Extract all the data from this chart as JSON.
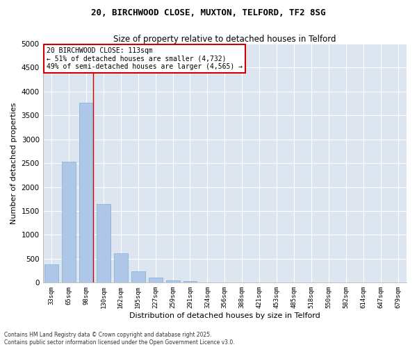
{
  "title_line1": "20, BIRCHWOOD CLOSE, MUXTON, TELFORD, TF2 8SG",
  "title_line2": "Size of property relative to detached houses in Telford",
  "xlabel": "Distribution of detached houses by size in Telford",
  "ylabel": "Number of detached properties",
  "categories": [
    "33sqm",
    "65sqm",
    "98sqm",
    "130sqm",
    "162sqm",
    "195sqm",
    "227sqm",
    "259sqm",
    "291sqm",
    "324sqm",
    "356sqm",
    "388sqm",
    "421sqm",
    "453sqm",
    "485sqm",
    "518sqm",
    "550sqm",
    "582sqm",
    "614sqm",
    "647sqm",
    "679sqm"
  ],
  "values": [
    380,
    2530,
    3760,
    1650,
    610,
    235,
    110,
    50,
    30,
    0,
    0,
    0,
    0,
    0,
    0,
    0,
    0,
    0,
    0,
    0,
    0
  ],
  "bar_color": "#aec6e8",
  "bar_edge_color": "#7bafd4",
  "vline_color": "#cc0000",
  "annotation_text": "20 BIRCHWOOD CLOSE: 113sqm\n← 51% of detached houses are smaller (4,732)\n49% of semi-detached houses are larger (4,565) →",
  "annotation_box_color": "white",
  "annotation_box_edge": "#cc0000",
  "ylim": [
    0,
    5000
  ],
  "yticks": [
    0,
    500,
    1000,
    1500,
    2000,
    2500,
    3000,
    3500,
    4000,
    4500,
    5000
  ],
  "background_color": "#dde5f0",
  "grid_color": "white",
  "footer_line1": "Contains HM Land Registry data © Crown copyright and database right 2025.",
  "footer_line2": "Contains public sector information licensed under the Open Government Licence v3.0."
}
